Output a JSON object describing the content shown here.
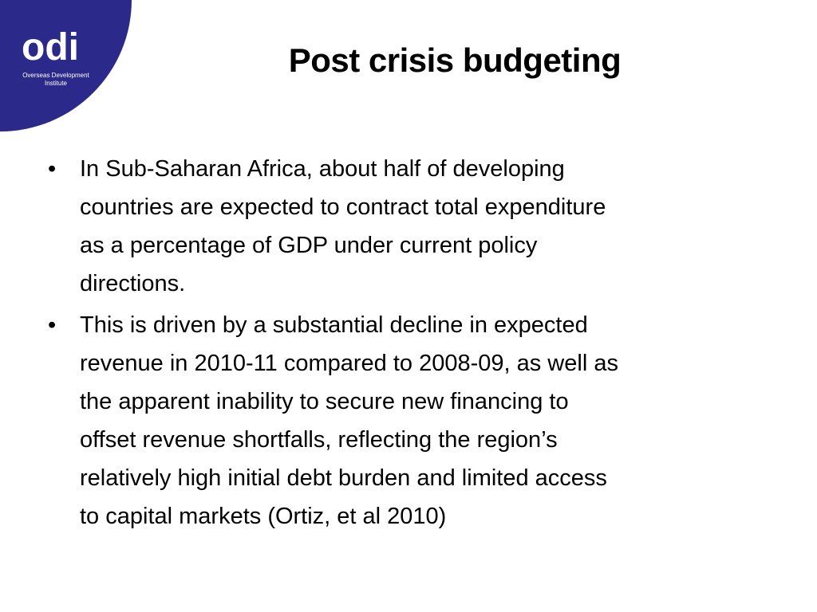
{
  "logo": {
    "mark": "odi",
    "name_lines": [
      "Overseas Development",
      "Institute"
    ]
  },
  "title": "Post crisis budgeting",
  "bullets": [
    {
      "lines": [
        "In Sub-Saharan Africa, about half of developing",
        "countries are expected to contract total expenditure",
        "as a percentage of GDP under current policy",
        "directions."
      ]
    },
    {
      "lines": [
        "This is driven by a substantial decline in expected",
        "revenue in 2010-11 compared to 2008-09, as well as",
        "the apparent inability to secure new financing  to",
        "offset revenue shortfalls, reflecting the region’s",
        "relatively high initial debt burden and limited access",
        "to capital markets (Ortiz, et al 2010)"
      ]
    }
  ]
}
